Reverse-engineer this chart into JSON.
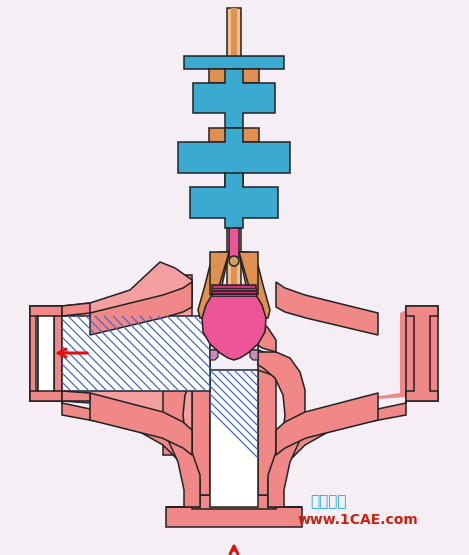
{
  "bg_color": "#F5EEF5",
  "pink": "#F08888",
  "pink2": "#F4A0A0",
  "blue": "#3BAAD0",
  "orange": "#E09050",
  "orange_light": "#F0C090",
  "magenta": "#EE5599",
  "magenta_dark": "#CC3377",
  "white": "#FFFFFF",
  "black": "#222222",
  "red_arrow": "#DD1111",
  "hatch_color": "#4466CC",
  "text_cyan": "#22AADD",
  "text_red": "#CC2211",
  "title_text": "仿真在线",
  "url_text": "www.1CAE.com",
  "figsize": [
    4.69,
    5.55
  ],
  "dpi": 100
}
